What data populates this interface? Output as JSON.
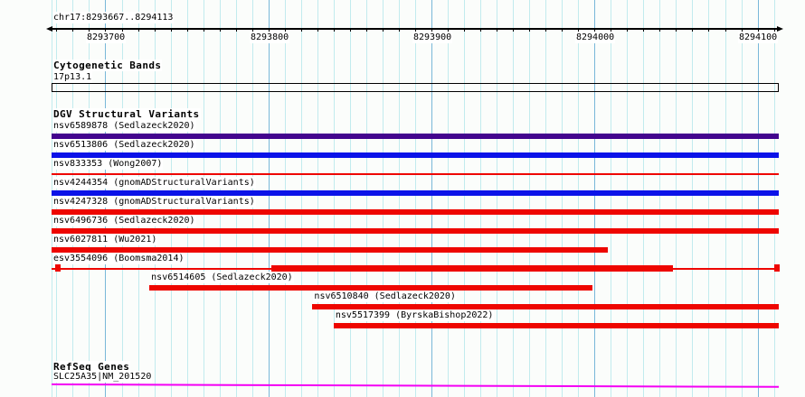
{
  "chart_data": {
    "type": "genome-track-plot",
    "title": "chr17:8293667..8294113",
    "region": {
      "label": "chr17:8293667..8294113",
      "chrom": "chr17",
      "start": 8293667,
      "end": 8294113
    },
    "axis": {
      "minor_step": 10,
      "major_step": 100,
      "major_tick_labels": [
        "8293700",
        "8293800",
        "8293900",
        "8294000",
        "8294100"
      ],
      "grid": true
    },
    "colors": {
      "complex_purple": "#43058e",
      "loss_blue": "#0b12e8",
      "gain_red": "#ee0600",
      "gene_magenta": "#f400f4",
      "grid_minor": "#c2ebee",
      "grid_major": "#79b8d9",
      "axis_black": "#000000",
      "background": "#fbfdfb"
    },
    "tracks": {
      "cytogenetic_bands": {
        "header": "Cytogenetic Bands",
        "bands": [
          {
            "name": "17p13.1",
            "start": 8293667,
            "end": 8294113
          }
        ]
      },
      "dgv_structural_variants": {
        "header": "DGV Structural Variants",
        "variants": [
          {
            "label": "nsv6589878 (Sedlazeck2020)",
            "color_key": "complex_purple",
            "shape": "bar",
            "start": 8293667,
            "end": 8294113
          },
          {
            "label": "nsv6513806 (Sedlazeck2020)",
            "color_key": "loss_blue",
            "shape": "bar",
            "start": 8293667,
            "end": 8294113
          },
          {
            "label": "nsv833353 (Wong2007)",
            "color_key": "gain_red",
            "shape": "thin",
            "start": 8293667,
            "end": 8294113
          },
          {
            "label": "nsv4244354 (gnomADStructuralVariants)",
            "color_key": "loss_blue",
            "shape": "bar",
            "start": 8293667,
            "end": 8294113
          },
          {
            "label": "nsv4247328 (gnomADStructuralVariants)",
            "color_key": "gain_red",
            "shape": "bar",
            "start": 8293667,
            "end": 8294113
          },
          {
            "label": "nsv6496736 (Sedlazeck2020)",
            "color_key": "gain_red",
            "shape": "bar",
            "start": 8293667,
            "end": 8294113
          },
          {
            "label": "nsv6027811 (Wu2021)",
            "color_key": "gain_red",
            "shape": "bar",
            "start": 8293667,
            "end": 8294008
          },
          {
            "label": "esv3554096 (Boomsma2014)",
            "color_key": "gain_red",
            "shape": "range",
            "start": 8293667,
            "end": 8294113,
            "outer_start": 8293671,
            "outer_end": 8294112,
            "inner_start": 8293802,
            "inner_end": 8294048
          },
          {
            "label": "nsv6514605 (Sedlazeck2020)",
            "color_key": "gain_red",
            "shape": "bar",
            "start": 8293727,
            "end": 8293999
          },
          {
            "label": "nsv6510840 (Sedlazeck2020)",
            "color_key": "gain_red",
            "shape": "bar",
            "start": 8293827,
            "end": 8294113
          },
          {
            "label": "nsv5517399 (ByrskaBishop2022)",
            "color_key": "gain_red",
            "shape": "bar",
            "start": 8293840,
            "end": 8294113
          }
        ]
      },
      "refseq_genes": {
        "header": "RefSeq Genes",
        "genes": [
          {
            "name": "SLC25A35|NM_201520",
            "start": 8293667,
            "end": 8294113
          }
        ]
      }
    }
  }
}
